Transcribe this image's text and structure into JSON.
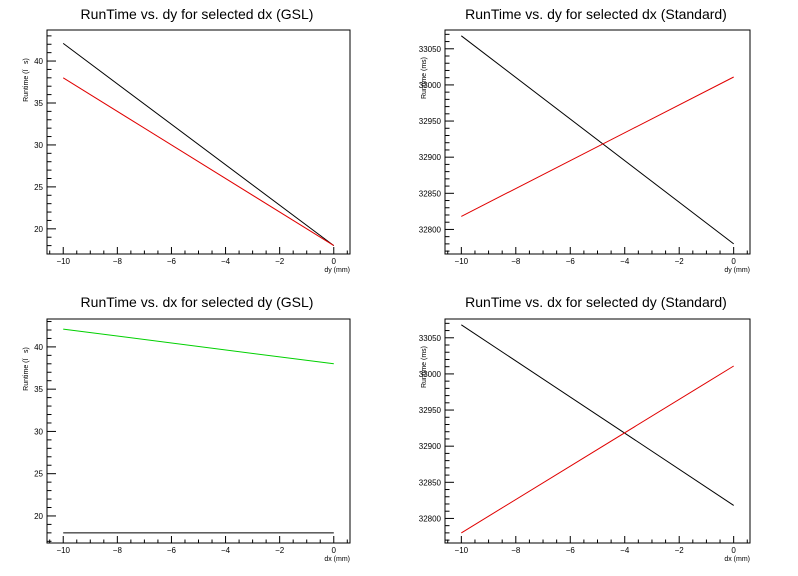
{
  "colors": {
    "black": "#000000",
    "red": "#e00000",
    "green": "#00d000"
  },
  "chart_data": [
    {
      "type": "line",
      "title": "RunTime vs. dy for selected dx (GSL)",
      "xlabel": "dy (mm)",
      "ylabel": "Runtime (Ïs)",
      "xlim": [
        -10.6,
        0.6
      ],
      "ylim": [
        17.0,
        43.7
      ],
      "xticks": [
        -10,
        -8,
        -6,
        -4,
        -2,
        0
      ],
      "yticks": [
        20,
        25,
        30,
        35,
        40
      ],
      "series": [
        {
          "color": "#000000",
          "x": [
            -10,
            0
          ],
          "y": [
            42.1,
            18.0
          ]
        },
        {
          "color": "#e00000",
          "x": [
            -10,
            0
          ],
          "y": [
            38.0,
            18.0
          ]
        }
      ]
    },
    {
      "type": "line",
      "title": "RunTime vs. dy for selected dx (Standard)",
      "xlabel": "dy (mm)",
      "ylabel": "Runtime (ms)",
      "xlim": [
        -10.6,
        0.6
      ],
      "ylim": [
        32766,
        33076
      ],
      "xticks": [
        -10,
        -8,
        -6,
        -4,
        -2,
        0
      ],
      "yticks": [
        32800,
        32850,
        32900,
        32950,
        33000,
        33050
      ],
      "series": [
        {
          "color": "#000000",
          "x": [
            -10,
            0
          ],
          "y": [
            33068,
            32780
          ]
        },
        {
          "color": "#e00000",
          "x": [
            -10,
            0
          ],
          "y": [
            32818,
            33011
          ]
        }
      ]
    },
    {
      "type": "line",
      "title": "RunTime vs. dx for selected dy (GSL)",
      "xlabel": "dx (mm)",
      "ylabel": "Runtime (Ïs)",
      "xlim": [
        -10.6,
        0.6
      ],
      "ylim": [
        16.8,
        43.3
      ],
      "xticks": [
        -10,
        -8,
        -6,
        -4,
        -2,
        0
      ],
      "yticks": [
        20,
        25,
        30,
        35,
        40
      ],
      "series": [
        {
          "color": "#00d000",
          "x": [
            -10,
            0
          ],
          "y": [
            42.1,
            38.0
          ]
        },
        {
          "color": "#000000",
          "x": [
            -10,
            0
          ],
          "y": [
            18.0,
            18.0
          ]
        }
      ]
    },
    {
      "type": "line",
      "title": "RunTime vs. dx for selected dy (Standard)",
      "xlabel": "dx (mm)",
      "ylabel": "Runtime (ms)",
      "xlim": [
        -10.6,
        0.6
      ],
      "ylim": [
        32766,
        33076
      ],
      "xticks": [
        -10,
        -8,
        -6,
        -4,
        -2,
        0
      ],
      "yticks": [
        32800,
        32850,
        32900,
        32950,
        33000,
        33050
      ],
      "series": [
        {
          "color": "#000000",
          "x": [
            -10,
            0
          ],
          "y": [
            33068,
            32818
          ]
        },
        {
          "color": "#e00000",
          "x": [
            -10,
            0
          ],
          "y": [
            32780,
            33011
          ]
        }
      ]
    }
  ]
}
